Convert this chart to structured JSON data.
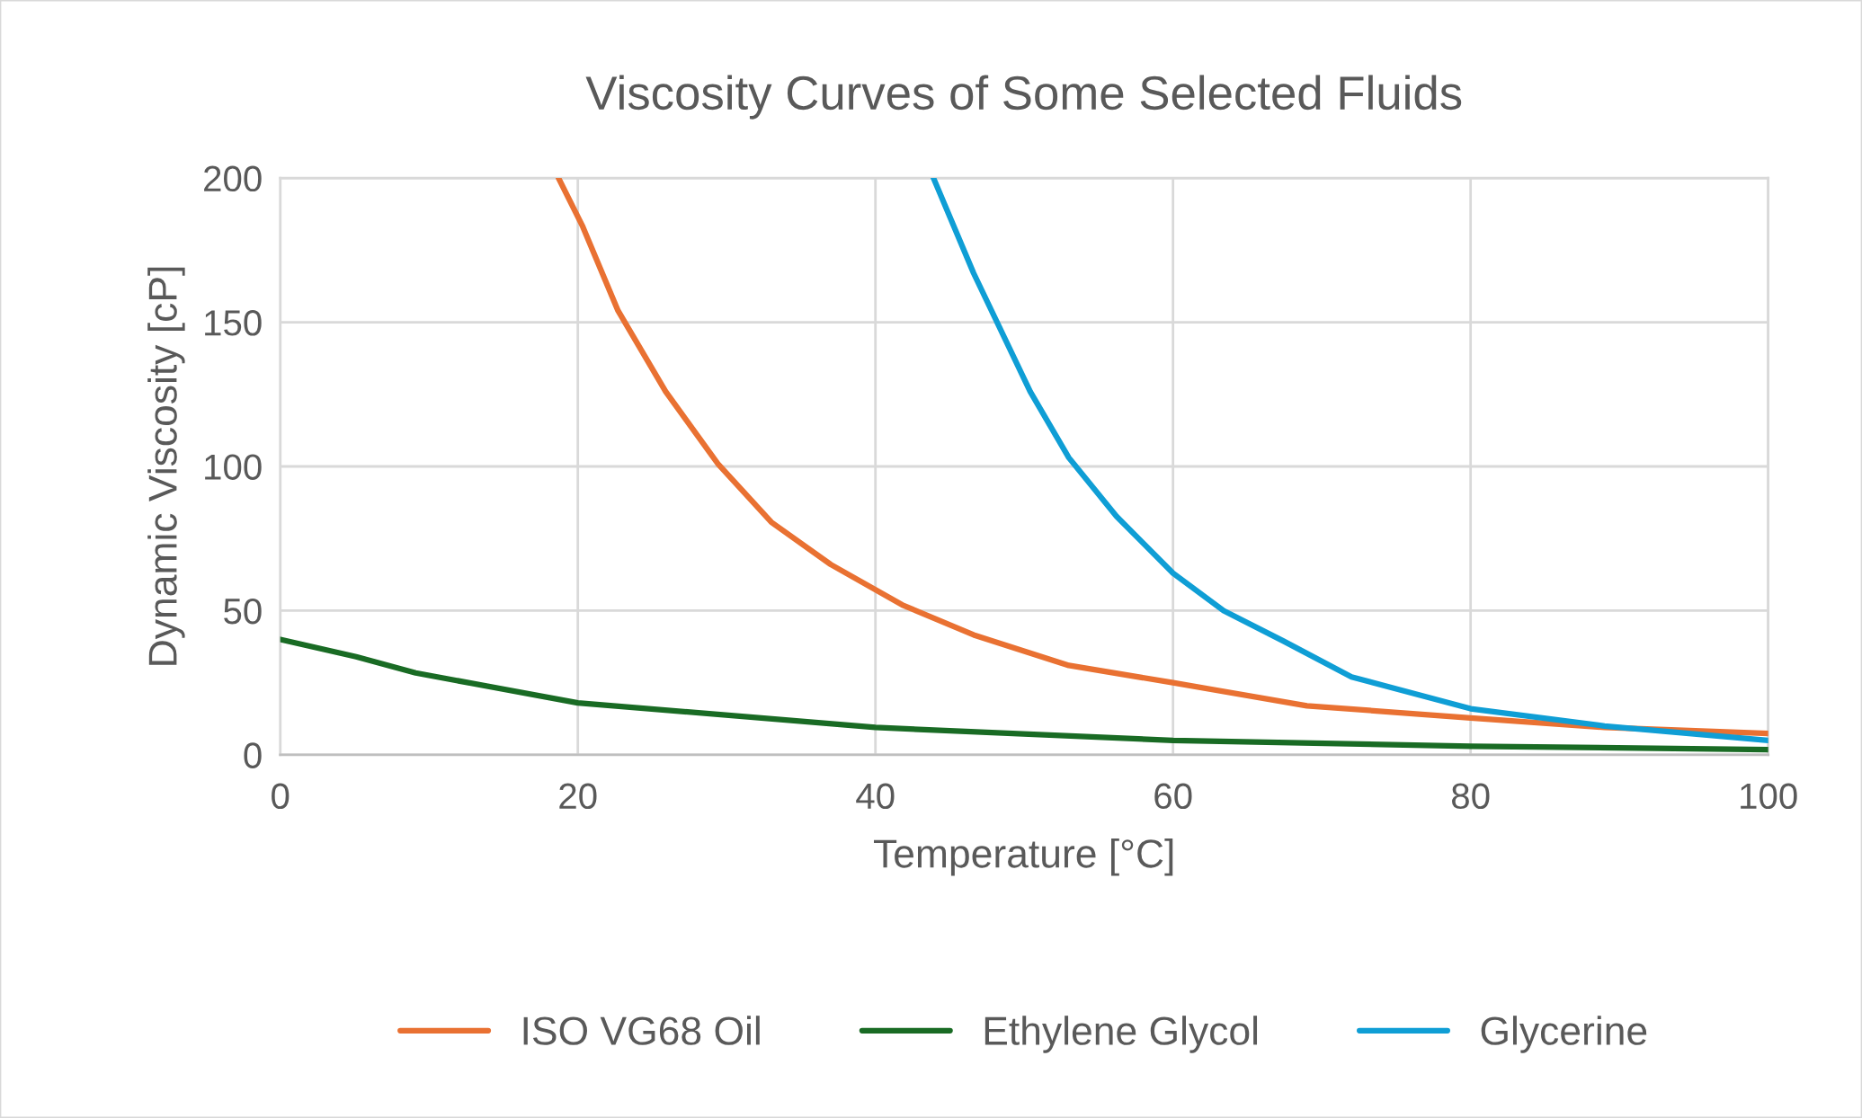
{
  "chart_data": {
    "type": "line",
    "title": "Viscosity Curves of Some Selected Fluids",
    "xlabel": "Temperature [°C]",
    "ylabel": "Dynamic Viscosity [cP]",
    "xlim": [
      0,
      100
    ],
    "xticks": [
      0,
      20,
      40,
      60,
      80,
      100
    ],
    "ylim": [
      0,
      200
    ],
    "yticks": [
      0,
      50,
      100,
      150,
      200
    ],
    "grid": true,
    "legend": "bottom",
    "marker": "none",
    "line_style": "solid",
    "series": [
      {
        "name": "ISO VG68 Oil",
        "color": "#e97132",
        "x": [
          18.7,
          20.3,
          22.7,
          25.9,
          29.4,
          33,
          37,
          41.8,
          46.6,
          53,
          60,
          69,
          80,
          89,
          100
        ],
        "values": [
          200,
          183.5,
          154,
          126,
          101,
          80.7,
          66,
          52,
          41.6,
          31,
          25,
          17,
          12.8,
          9.5,
          7.4
        ]
      },
      {
        "name": "Ethylene Glycol",
        "color": "#196b24",
        "x": [
          0,
          5.1,
          9.1,
          20,
          40,
          60,
          80,
          100
        ],
        "values": [
          40,
          34,
          28.4,
          18,
          9.5,
          5,
          3,
          1.8
        ]
      },
      {
        "name": "Glycerine",
        "color": "#0f9ed5",
        "x": [
          43.9,
          46.6,
          50.4,
          53,
          56.2,
          60,
          63.4,
          67.4,
          72,
          80,
          89,
          100
        ],
        "values": [
          200,
          167,
          126,
          103,
          82.7,
          63,
          50,
          39.5,
          27,
          16,
          10,
          5
        ]
      }
    ]
  }
}
